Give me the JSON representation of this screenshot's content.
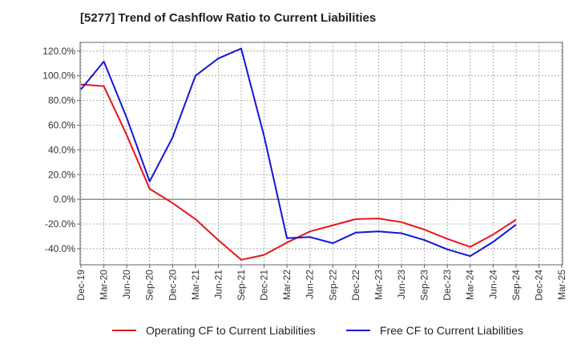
{
  "chart_data": {
    "type": "line",
    "title": "[5277]  Trend of Cashflow Ratio to Current Liabilities",
    "xlabel": "",
    "ylabel": "",
    "categories": [
      "Dec-19",
      "Mar-20",
      "Jun-20",
      "Sep-20",
      "Dec-20",
      "Mar-21",
      "Jun-21",
      "Sep-21",
      "Dec-21",
      "Mar-22",
      "Jun-22",
      "Sep-22",
      "Dec-22",
      "Mar-23",
      "Jun-23",
      "Sep-23",
      "Dec-23",
      "Mar-24",
      "Jun-24",
      "Sep-24",
      "Dec-24",
      "Mar-25"
    ],
    "y_ticks": [
      "120.0%",
      "100.0%",
      "80.0%",
      "60.0%",
      "40.0%",
      "20.0%",
      "0.0%",
      "-20.0%",
      "-40.0%"
    ],
    "ylim": [
      -53,
      127
    ],
    "grid": true,
    "legend_position": "bottom",
    "series": [
      {
        "name": "Operating CF to Current Liabilities",
        "color": "#e8141c",
        "values": [
          93.0,
          91.5,
          52.0,
          8.5,
          -3.0,
          -16.0,
          -33.0,
          -49.0,
          -45.0,
          -35.0,
          -26.0,
          -21.0,
          -16.0,
          -15.5,
          -18.5,
          -24.5,
          -32.0,
          -38.5,
          -28.5,
          -16.5,
          null,
          null
        ]
      },
      {
        "name": "Free CF to Current Liabilities",
        "color": "#1414d8",
        "values": [
          89.0,
          111.5,
          66.0,
          14.5,
          50.0,
          100.0,
          114.0,
          122.0,
          51.0,
          -31.5,
          -30.5,
          -35.5,
          -27.0,
          -26.0,
          -27.5,
          -33.0,
          -40.5,
          -46.0,
          -34.5,
          -20.5,
          null,
          null
        ]
      }
    ]
  }
}
